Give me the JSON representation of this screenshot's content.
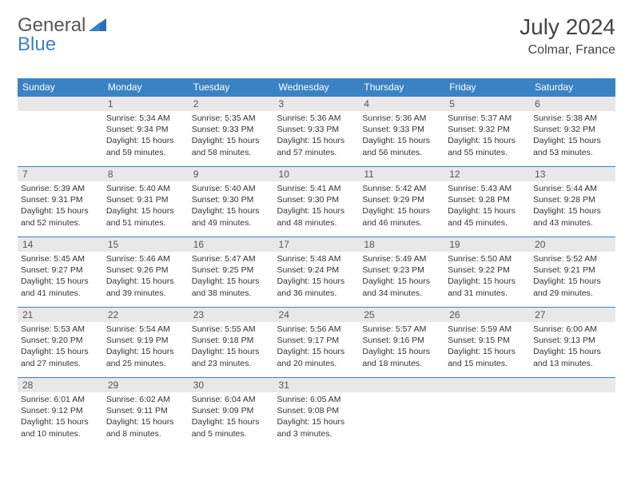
{
  "brand": {
    "general": "General",
    "blue": "Blue"
  },
  "title": {
    "month": "July 2024",
    "location": "Colmar, France"
  },
  "colors": {
    "header_bg": "#3b82c4",
    "header_text": "#ffffff",
    "daynum_bg": "#e8e8e8",
    "text": "#333333",
    "border": "#3b82c4"
  },
  "dow": [
    "Sunday",
    "Monday",
    "Tuesday",
    "Wednesday",
    "Thursday",
    "Friday",
    "Saturday"
  ],
  "weeks": [
    [
      null,
      {
        "n": "1",
        "sr": "Sunrise: 5:34 AM",
        "ss": "Sunset: 9:34 PM",
        "dl": "Daylight: 15 hours and 59 minutes."
      },
      {
        "n": "2",
        "sr": "Sunrise: 5:35 AM",
        "ss": "Sunset: 9:33 PM",
        "dl": "Daylight: 15 hours and 58 minutes."
      },
      {
        "n": "3",
        "sr": "Sunrise: 5:36 AM",
        "ss": "Sunset: 9:33 PM",
        "dl": "Daylight: 15 hours and 57 minutes."
      },
      {
        "n": "4",
        "sr": "Sunrise: 5:36 AM",
        "ss": "Sunset: 9:33 PM",
        "dl": "Daylight: 15 hours and 56 minutes."
      },
      {
        "n": "5",
        "sr": "Sunrise: 5:37 AM",
        "ss": "Sunset: 9:32 PM",
        "dl": "Daylight: 15 hours and 55 minutes."
      },
      {
        "n": "6",
        "sr": "Sunrise: 5:38 AM",
        "ss": "Sunset: 9:32 PM",
        "dl": "Daylight: 15 hours and 53 minutes."
      }
    ],
    [
      {
        "n": "7",
        "sr": "Sunrise: 5:39 AM",
        "ss": "Sunset: 9:31 PM",
        "dl": "Daylight: 15 hours and 52 minutes."
      },
      {
        "n": "8",
        "sr": "Sunrise: 5:40 AM",
        "ss": "Sunset: 9:31 PM",
        "dl": "Daylight: 15 hours and 51 minutes."
      },
      {
        "n": "9",
        "sr": "Sunrise: 5:40 AM",
        "ss": "Sunset: 9:30 PM",
        "dl": "Daylight: 15 hours and 49 minutes."
      },
      {
        "n": "10",
        "sr": "Sunrise: 5:41 AM",
        "ss": "Sunset: 9:30 PM",
        "dl": "Daylight: 15 hours and 48 minutes."
      },
      {
        "n": "11",
        "sr": "Sunrise: 5:42 AM",
        "ss": "Sunset: 9:29 PM",
        "dl": "Daylight: 15 hours and 46 minutes."
      },
      {
        "n": "12",
        "sr": "Sunrise: 5:43 AM",
        "ss": "Sunset: 9:28 PM",
        "dl": "Daylight: 15 hours and 45 minutes."
      },
      {
        "n": "13",
        "sr": "Sunrise: 5:44 AM",
        "ss": "Sunset: 9:28 PM",
        "dl": "Daylight: 15 hours and 43 minutes."
      }
    ],
    [
      {
        "n": "14",
        "sr": "Sunrise: 5:45 AM",
        "ss": "Sunset: 9:27 PM",
        "dl": "Daylight: 15 hours and 41 minutes."
      },
      {
        "n": "15",
        "sr": "Sunrise: 5:46 AM",
        "ss": "Sunset: 9:26 PM",
        "dl": "Daylight: 15 hours and 39 minutes."
      },
      {
        "n": "16",
        "sr": "Sunrise: 5:47 AM",
        "ss": "Sunset: 9:25 PM",
        "dl": "Daylight: 15 hours and 38 minutes."
      },
      {
        "n": "17",
        "sr": "Sunrise: 5:48 AM",
        "ss": "Sunset: 9:24 PM",
        "dl": "Daylight: 15 hours and 36 minutes."
      },
      {
        "n": "18",
        "sr": "Sunrise: 5:49 AM",
        "ss": "Sunset: 9:23 PM",
        "dl": "Daylight: 15 hours and 34 minutes."
      },
      {
        "n": "19",
        "sr": "Sunrise: 5:50 AM",
        "ss": "Sunset: 9:22 PM",
        "dl": "Daylight: 15 hours and 31 minutes."
      },
      {
        "n": "20",
        "sr": "Sunrise: 5:52 AM",
        "ss": "Sunset: 9:21 PM",
        "dl": "Daylight: 15 hours and 29 minutes."
      }
    ],
    [
      {
        "n": "21",
        "sr": "Sunrise: 5:53 AM",
        "ss": "Sunset: 9:20 PM",
        "dl": "Daylight: 15 hours and 27 minutes."
      },
      {
        "n": "22",
        "sr": "Sunrise: 5:54 AM",
        "ss": "Sunset: 9:19 PM",
        "dl": "Daylight: 15 hours and 25 minutes."
      },
      {
        "n": "23",
        "sr": "Sunrise: 5:55 AM",
        "ss": "Sunset: 9:18 PM",
        "dl": "Daylight: 15 hours and 23 minutes."
      },
      {
        "n": "24",
        "sr": "Sunrise: 5:56 AM",
        "ss": "Sunset: 9:17 PM",
        "dl": "Daylight: 15 hours and 20 minutes."
      },
      {
        "n": "25",
        "sr": "Sunrise: 5:57 AM",
        "ss": "Sunset: 9:16 PM",
        "dl": "Daylight: 15 hours and 18 minutes."
      },
      {
        "n": "26",
        "sr": "Sunrise: 5:59 AM",
        "ss": "Sunset: 9:15 PM",
        "dl": "Daylight: 15 hours and 15 minutes."
      },
      {
        "n": "27",
        "sr": "Sunrise: 6:00 AM",
        "ss": "Sunset: 9:13 PM",
        "dl": "Daylight: 15 hours and 13 minutes."
      }
    ],
    [
      {
        "n": "28",
        "sr": "Sunrise: 6:01 AM",
        "ss": "Sunset: 9:12 PM",
        "dl": "Daylight: 15 hours and 10 minutes."
      },
      {
        "n": "29",
        "sr": "Sunrise: 6:02 AM",
        "ss": "Sunset: 9:11 PM",
        "dl": "Daylight: 15 hours and 8 minutes."
      },
      {
        "n": "30",
        "sr": "Sunrise: 6:04 AM",
        "ss": "Sunset: 9:09 PM",
        "dl": "Daylight: 15 hours and 5 minutes."
      },
      {
        "n": "31",
        "sr": "Sunrise: 6:05 AM",
        "ss": "Sunset: 9:08 PM",
        "dl": "Daylight: 15 hours and 3 minutes."
      },
      null,
      null,
      null
    ]
  ]
}
